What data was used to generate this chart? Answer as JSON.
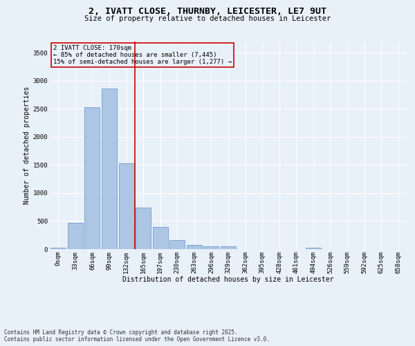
{
  "title_line1": "2, IVATT CLOSE, THURNBY, LEICESTER, LE7 9UT",
  "title_line2": "Size of property relative to detached houses in Leicester",
  "xlabel": "Distribution of detached houses by size in Leicester",
  "ylabel": "Number of detached properties",
  "footer_line1": "Contains HM Land Registry data © Crown copyright and database right 2025.",
  "footer_line2": "Contains public sector information licensed under the Open Government Licence v3.0.",
  "bar_labels": [
    "0sqm",
    "33sqm",
    "66sqm",
    "99sqm",
    "132sqm",
    "165sqm",
    "197sqm",
    "230sqm",
    "263sqm",
    "296sqm",
    "329sqm",
    "362sqm",
    "395sqm",
    "428sqm",
    "461sqm",
    "494sqm",
    "526sqm",
    "559sqm",
    "592sqm",
    "625sqm",
    "658sqm"
  ],
  "bar_values": [
    20,
    470,
    2530,
    2860,
    1530,
    740,
    390,
    155,
    75,
    55,
    45,
    0,
    0,
    0,
    0,
    20,
    0,
    0,
    0,
    0,
    0
  ],
  "bar_color": "#adc6e5",
  "bar_edge_color": "#5a8fc2",
  "vline_color": "#cc0000",
  "annotation_title": "2 IVATT CLOSE: 170sqm",
  "annotation_line1": "← 85% of detached houses are smaller (7,445)",
  "annotation_line2": "15% of semi-detached houses are larger (1,277) →",
  "annotation_box_color": "#cc0000",
  "ylim": [
    0,
    3700
  ],
  "yticks": [
    0,
    500,
    1000,
    1500,
    2000,
    2500,
    3000,
    3500
  ],
  "background_color": "#e8f0f8",
  "grid_color": "#ffffff",
  "title_fontsize": 9.5,
  "subtitle_fontsize": 7.5,
  "ylabel_fontsize": 7,
  "xlabel_fontsize": 7,
  "tick_fontsize": 6.5,
  "annotation_fontsize": 6.5,
  "footer_fontsize": 5.5
}
